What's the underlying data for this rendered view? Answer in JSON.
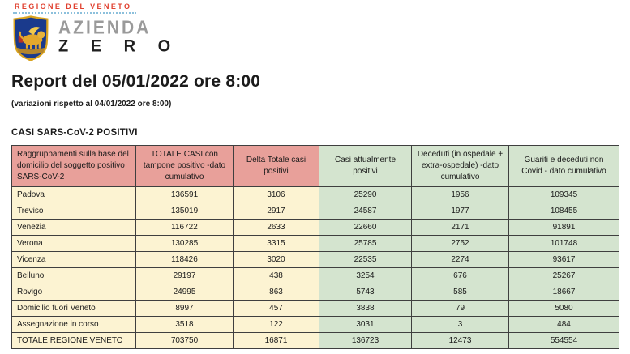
{
  "logo": {
    "region_label": "REGIONE DEL VENETO",
    "brand_line1": "AZIENDA",
    "brand_line2": "Z E R O",
    "region_color": "#e0402f",
    "dotted_line_color": "#8cc0dc"
  },
  "report": {
    "title": "Report del 05/01/2022 ore 8:00",
    "subtitle": "(variazioni rispetto al 04/01/2022 ore 8:00)",
    "section_title": "CASI SARS-CoV-2 POSITIVI"
  },
  "table": {
    "columns": [
      "Raggruppamenti sulla base del domicilio del soggetto positivo SARS-CoV-2",
      "TOTALE CASI con tampone positivo -dato cumulativo",
      "Delta Totale casi positivi",
      "Casi attualmente positivi",
      "Deceduti (in ospedale + extra-ospedale) -dato cumulativo",
      "Guariti e deceduti non Covid - dato cumulativo"
    ],
    "rows": [
      [
        "Padova",
        "136591",
        "3106",
        "25290",
        "1956",
        "109345"
      ],
      [
        "Treviso",
        "135019",
        "2917",
        "24587",
        "1977",
        "108455"
      ],
      [
        "Venezia",
        "116722",
        "2633",
        "22660",
        "2171",
        "91891"
      ],
      [
        "Verona",
        "130285",
        "3315",
        "25785",
        "2752",
        "101748"
      ],
      [
        "Vicenza",
        "118426",
        "3020",
        "22535",
        "2274",
        "93617"
      ],
      [
        "Belluno",
        "29197",
        "438",
        "3254",
        "676",
        "25267"
      ],
      [
        "Rovigo",
        "24995",
        "863",
        "5743",
        "585",
        "18667"
      ],
      [
        "Domicilio fuori Veneto",
        "8997",
        "457",
        "3838",
        "79",
        "5080"
      ],
      [
        "Assegnazione in corso",
        "3518",
        "122",
        "3031",
        "3",
        "484"
      ]
    ],
    "total_row": [
      "TOTALE REGIONE VENETO",
      "703750",
      "16871",
      "136723",
      "12473",
      "554554"
    ],
    "colors": {
      "header_warm": "#e8a09a",
      "header_cool": "#d4e4cf",
      "cell_warm": "#fcf3d2",
      "cell_cool": "#d4e4cf",
      "border": "#3f3f3f"
    }
  }
}
